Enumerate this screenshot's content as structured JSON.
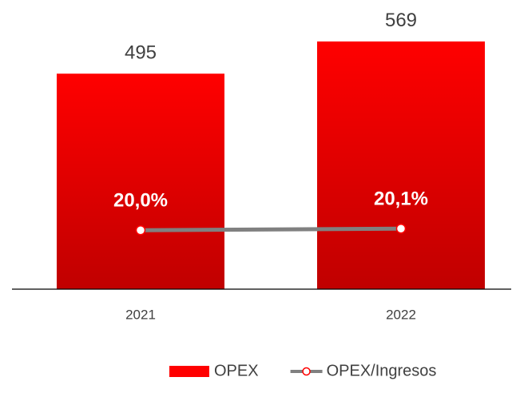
{
  "chart_data": {
    "type": "bar",
    "categories": [
      "2021",
      "2022"
    ],
    "series": [
      {
        "name": "OPEX",
        "type": "bar",
        "color": "#ff0000",
        "values": [
          495,
          569
        ]
      },
      {
        "name": "OPEX/Ingresos",
        "type": "line",
        "axis": "y2",
        "color": "#808080",
        "marker_color": "#ff0000",
        "values": [
          20.0,
          20.1
        ],
        "value_labels": [
          "20,0%",
          "20,1%"
        ]
      }
    ],
    "ylim": [
      0,
      600
    ],
    "y2lim": [
      16.3,
      32.7
    ],
    "legend": "bottom"
  }
}
